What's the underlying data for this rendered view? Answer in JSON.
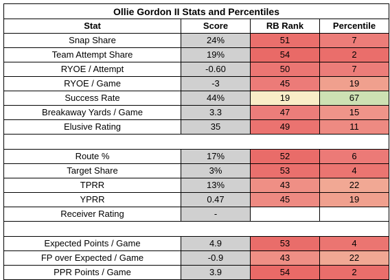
{
  "title": "Ollie Gordon II Stats and Percentiles",
  "headers": [
    "Stat",
    "Score",
    "RB Rank",
    "Percentile"
  ],
  "colors": {
    "score_bg": "#d0d0d0",
    "rank_bg": [
      "#ea6f6c",
      "#e96a67",
      "#eb7673",
      "#ec7b78",
      "#f9edc7",
      "#ec7d7a",
      "#eb7370",
      "#e96c69",
      "#ea706d",
      "#ef8f85",
      "#ee8a82",
      "",
      "#e96d6a",
      "#ef8f85",
      "#e96a67"
    ],
    "pct_bg": [
      "#ec7d79",
      "#ea6e6b",
      "#ec7d79",
      "#f0a08e",
      "#cde1b3",
      "#ef9489",
      "#ee8a82",
      "#ec7a77",
      "#eb7571",
      "#f1a894",
      "#f0a08e",
      "",
      "#eb7571",
      "#f1a894",
      "#ea6e6b"
    ]
  },
  "groups": [
    {
      "rows": [
        {
          "stat": "Snap Share",
          "score": "24%",
          "rank": "51",
          "pct": "7"
        },
        {
          "stat": "Team Attempt Share",
          "score": "19%",
          "rank": "54",
          "pct": "2"
        },
        {
          "stat": "RYOE / Attempt",
          "score": "-0.60",
          "rank": "50",
          "pct": "7"
        },
        {
          "stat": "RYOE / Game",
          "score": "-3",
          "rank": "45",
          "pct": "19"
        },
        {
          "stat": "Success Rate",
          "score": "44%",
          "rank": "19",
          "pct": "67"
        },
        {
          "stat": "Breakaway Yards / Game",
          "score": "3.3",
          "rank": "47",
          "pct": "15"
        },
        {
          "stat": "Elusive Rating",
          "score": "35",
          "rank": "49",
          "pct": "11"
        }
      ]
    },
    {
      "rows": [
        {
          "stat": "Route %",
          "score": "17%",
          "rank": "52",
          "pct": "6"
        },
        {
          "stat": "Target Share",
          "score": "3%",
          "rank": "53",
          "pct": "4"
        },
        {
          "stat": "TPRR",
          "score": "13%",
          "rank": "43",
          "pct": "22"
        },
        {
          "stat": "YPRR",
          "score": "0.47",
          "rank": "45",
          "pct": "19"
        },
        {
          "stat": "Receiver Rating",
          "score": "-",
          "rank": "",
          "pct": ""
        }
      ]
    },
    {
      "rows": [
        {
          "stat": "Expected Points / Game",
          "score": "4.9",
          "rank": "53",
          "pct": "4"
        },
        {
          "stat": "FP over Expected / Game",
          "score": "-0.9",
          "rank": "43",
          "pct": "22"
        },
        {
          "stat": "PPR Points / Game",
          "score": "3.9",
          "rank": "54",
          "pct": "2"
        }
      ]
    }
  ]
}
